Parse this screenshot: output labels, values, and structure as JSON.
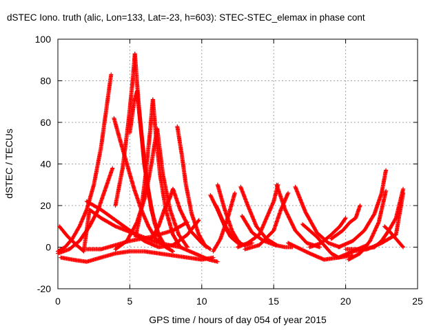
{
  "chart_data": {
    "type": "scatter",
    "title": "dSTEC Iono. truth (alic, Lon=133, Lat=-23, h=603): STEC-STEC_elemax in phase cont",
    "xlabel": "GPS time / hours of day 054 of year 2015",
    "ylabel": "dSTEC  / TECUs",
    "xlim": [
      0,
      25
    ],
    "ylim": [
      -20,
      100
    ],
    "xticks": [
      0,
      5,
      10,
      15,
      20,
      25
    ],
    "yticks": [
      -20,
      0,
      20,
      40,
      60,
      80,
      100
    ],
    "xtick_labels": [
      "0",
      "5",
      "10",
      "15",
      "20",
      "25"
    ],
    "ytick_labels": [
      "-20",
      "0",
      "20",
      "40",
      "60",
      "80",
      "100"
    ],
    "grid": true,
    "legend": "none",
    "marker": "plus",
    "color": "#ff0000",
    "series": [
      {
        "x": [
          0.0,
          0.5,
          1.0,
          1.5,
          2.0,
          2.5,
          3.0,
          3.4,
          3.7
        ],
        "y": [
          -2,
          0,
          4,
          10,
          18,
          30,
          48,
          68,
          83
        ]
      },
      {
        "x": [
          0.0,
          0.8,
          1.5,
          2.2,
          2.8,
          3.3,
          3.8
        ],
        "y": [
          -3,
          -1,
          3,
          10,
          18,
          28,
          38
        ]
      },
      {
        "x": [
          3.9,
          4.3,
          4.8,
          5.3,
          5.8,
          6.3,
          6.8,
          7.5
        ],
        "y": [
          62,
          52,
          40,
          28,
          18,
          10,
          4,
          0
        ]
      },
      {
        "x": [
          4.0,
          4.5,
          4.9,
          5.2,
          5.35
        ],
        "y": [
          20,
          38,
          60,
          80,
          93
        ]
      },
      {
        "x": [
          5.35,
          5.6,
          6.0,
          6.5,
          7.0,
          7.5,
          8.0
        ],
        "y": [
          93,
          70,
          40,
          18,
          6,
          0,
          -2
        ]
      },
      {
        "x": [
          5.0,
          5.3,
          5.5,
          5.8,
          6.2,
          6.7,
          7.2
        ],
        "y": [
          55,
          70,
          75,
          55,
          30,
          12,
          2
        ]
      },
      {
        "x": [
          5.4,
          5.8,
          6.1,
          6.4,
          6.6
        ],
        "y": [
          5,
          18,
          35,
          55,
          71
        ]
      },
      {
        "x": [
          6.6,
          6.8,
          7.1,
          7.5,
          8.0,
          8.5
        ],
        "y": [
          71,
          55,
          35,
          18,
          6,
          0
        ]
      },
      {
        "x": [
          4.0,
          4.8,
          5.5,
          6.1,
          6.5,
          6.9
        ],
        "y": [
          -1,
          3,
          12,
          25,
          40,
          57
        ]
      },
      {
        "x": [
          6.9,
          7.3,
          7.8,
          8.4,
          9.0
        ],
        "y": [
          57,
          35,
          18,
          6,
          0
        ]
      },
      {
        "x": [
          8.3,
          8.6,
          8.9,
          9.3,
          9.8,
          10.3
        ],
        "y": [
          58,
          45,
          30,
          16,
          6,
          0
        ]
      },
      {
        "x": [
          6.5,
          7.0,
          7.4,
          7.8,
          8.0
        ],
        "y": [
          4,
          10,
          18,
          24,
          28
        ]
      },
      {
        "x": [
          8.0,
          8.5,
          9.2,
          10.0,
          10.6
        ],
        "y": [
          28,
          18,
          8,
          2,
          -1
        ]
      },
      {
        "x": [
          0.1,
          0.7,
          1.3,
          1.8,
          2.2,
          3.0,
          4.0,
          5.5,
          7.0,
          8.5,
          9.5,
          10.5,
          11.1
        ],
        "y": [
          10,
          5,
          1,
          -2,
          18,
          14,
          10,
          6,
          2,
          0,
          -3,
          -6,
          -7
        ]
      },
      {
        "x": [
          0.2,
          1.0,
          2.0,
          3.0,
          4.0,
          5.0,
          6.0,
          7.0,
          8.0,
          9.0,
          10.0,
          10.8
        ],
        "y": [
          -5,
          -6,
          -7,
          -5,
          -3,
          -2,
          -2,
          -3,
          -4,
          -5,
          -6,
          -5
        ]
      },
      {
        "x": [
          2.0,
          3.0,
          4.0,
          5.0,
          6.0,
          7.0,
          8.0,
          9.0,
          9.8
        ],
        "y": [
          22,
          18,
          13,
          8,
          3,
          0,
          1,
          6,
          13
        ]
      },
      {
        "x": [
          2.0,
          3.0,
          4.0,
          5.0,
          6.5,
          8.0,
          9.0
        ],
        "y": [
          -1,
          -1,
          1,
          3,
          5,
          8,
          12
        ]
      },
      {
        "x": [
          10.6,
          11.1,
          11.6,
          12.0,
          12.5,
          13.0,
          13.5
        ],
        "y": [
          25,
          18,
          10,
          5,
          2,
          1,
          2
        ]
      },
      {
        "x": [
          11.1,
          11.6,
          12.1,
          12.6
        ],
        "y": [
          30,
          18,
          8,
          2
        ]
      },
      {
        "x": [
          10.8,
          11.3,
          11.8,
          12.3
        ],
        "y": [
          -2,
          4,
          14,
          26
        ]
      },
      {
        "x": [
          11.0,
          11.5,
          12.0,
          12.7
        ],
        "y": [
          20,
          12,
          6,
          2
        ]
      },
      {
        "x": [
          12.7,
          13.2,
          13.8,
          14.5,
          15.2
        ],
        "y": [
          29,
          20,
          10,
          4,
          1
        ]
      },
      {
        "x": [
          12.5,
          13.2,
          14.0,
          14.5,
          15.0,
          15.3
        ],
        "y": [
          0,
          2,
          6,
          14,
          22,
          30
        ]
      },
      {
        "x": [
          12.8,
          13.5,
          14.3,
          15.1,
          15.8,
          16.3
        ],
        "y": [
          15,
          7,
          3,
          1,
          0,
          0
        ]
      },
      {
        "x": [
          13.0,
          14.0,
          15.0,
          15.5,
          16.0
        ],
        "y": [
          -1,
          1,
          8,
          18,
          26
        ]
      },
      {
        "x": [
          15.2,
          15.8,
          16.5,
          17.3,
          18.2
        ],
        "y": [
          30,
          18,
          8,
          2,
          0
        ]
      },
      {
        "x": [
          16.5,
          17.2,
          18.0,
          18.8,
          19.6
        ],
        "y": [
          29,
          17,
          7,
          2,
          0
        ]
      },
      {
        "x": [
          17.5,
          18.3,
          19.0,
          19.6,
          20.0
        ],
        "y": [
          0,
          2,
          6,
          10,
          14
        ]
      },
      {
        "x": [
          17.0,
          18.0,
          18.5,
          19.0,
          19.5,
          20.5
        ],
        "y": [
          11,
          5,
          1,
          -3,
          -5,
          -4
        ]
      },
      {
        "x": [
          16.0,
          17.5,
          18.5,
          19.5,
          20.5,
          21.5
        ],
        "y": [
          2,
          -3,
          -6,
          -5,
          -2,
          1
        ]
      },
      {
        "x": [
          19.0,
          19.8,
          20.3,
          20.7,
          21.0
        ],
        "y": [
          4,
          8,
          12,
          14,
          20
        ]
      },
      {
        "x": [
          19.5,
          20.5,
          21.3,
          22.0,
          22.5,
          22.8
        ],
        "y": [
          0,
          3,
          8,
          16,
          26,
          37
        ]
      },
      {
        "x": [
          20.2,
          21.0,
          21.7,
          22.3,
          22.8
        ],
        "y": [
          -6,
          -3,
          3,
          12,
          27
        ]
      },
      {
        "x": [
          20.0,
          21.0,
          22.0,
          22.5,
          23.0,
          23.5,
          24.0
        ],
        "y": [
          -1,
          -1,
          0,
          3,
          8,
          14,
          28
        ]
      },
      {
        "x": [
          22.7,
          23.0,
          23.5,
          24.0
        ],
        "y": [
          10,
          8,
          4,
          0
        ]
      },
      {
        "x": [
          20.5,
          21.5,
          22.5,
          23.5,
          24.0
        ],
        "y": [
          -2,
          -1,
          2,
          6,
          26
        ]
      }
    ]
  }
}
